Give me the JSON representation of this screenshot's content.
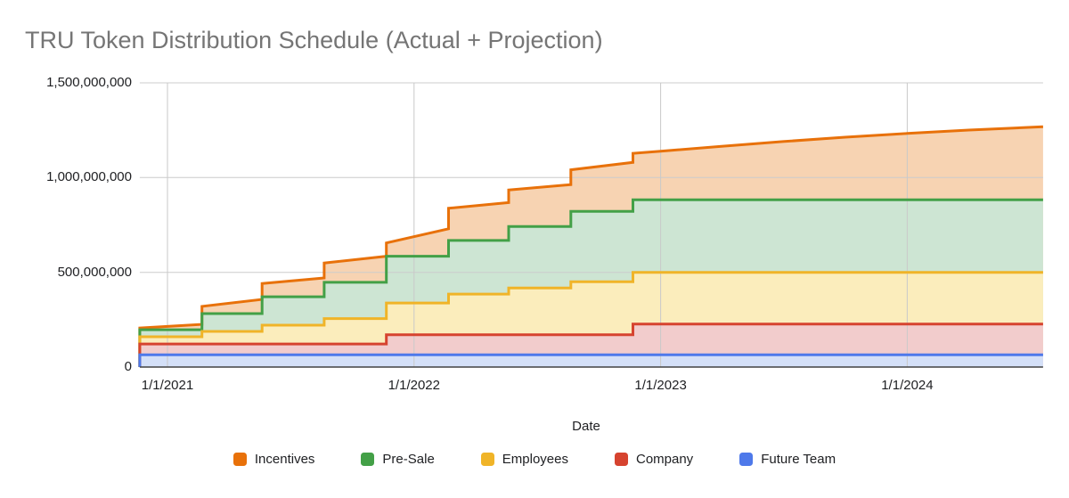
{
  "chart_data": {
    "type": "stepped-area",
    "title": "TRU Token Distribution Schedule (Actual + Projection)",
    "xlabel": "Date",
    "values_unit": "millions of tokens",
    "ylim_millions": [
      0,
      1500
    ],
    "grid": true,
    "legend_position": "bottom",
    "y_axis": {
      "ticks": [
        {
          "value_millions": 0,
          "label": "0"
        },
        {
          "value_millions": 500,
          "label": "500,000,000"
        },
        {
          "value_millions": 1000,
          "label": "1,000,000,000"
        },
        {
          "value_millions": 1500,
          "label": "1,500,000,000"
        }
      ]
    },
    "x_axis": {
      "ticks": [
        {
          "date": "2021-01-01",
          "label": "1/1/2021"
        },
        {
          "date": "2022-01-01",
          "label": "1/1/2022"
        },
        {
          "date": "2023-01-01",
          "label": "1/1/2023"
        },
        {
          "date": "2024-01-01",
          "label": "1/1/2024"
        }
      ],
      "range": [
        "2020-11-21",
        "2024-07-20"
      ]
    },
    "series": [
      {
        "name": "Incentives",
        "color": "#E8710A",
        "fill": "#F7D3B2",
        "step": false,
        "points": [
          [
            "2020-11-21",
            0
          ],
          [
            "2020-11-21",
            206
          ],
          [
            "2021-02-21",
            225
          ],
          [
            "2021-02-21",
            320
          ],
          [
            "2021-05-21",
            357
          ],
          [
            "2021-05-21",
            441
          ],
          [
            "2021-08-21",
            470
          ],
          [
            "2021-08-21",
            549
          ],
          [
            "2021-11-21",
            585
          ],
          [
            "2021-11-21",
            655
          ],
          [
            "2022-02-21",
            730
          ],
          [
            "2022-02-21",
            838
          ],
          [
            "2022-05-21",
            868
          ],
          [
            "2022-05-21",
            935
          ],
          [
            "2022-08-21",
            963
          ],
          [
            "2022-08-21",
            1041
          ],
          [
            "2022-11-21",
            1080
          ],
          [
            "2022-11-21",
            1128
          ],
          [
            "2023-01-01",
            1139
          ],
          [
            "2023-04-01",
            1165
          ],
          [
            "2023-07-01",
            1190
          ],
          [
            "2023-10-01",
            1213
          ],
          [
            "2024-01-01",
            1233
          ],
          [
            "2024-04-01",
            1251
          ],
          [
            "2024-07-20",
            1268
          ]
        ]
      },
      {
        "name": "Pre-Sale",
        "color": "#43A047",
        "fill": "#CDE5D3",
        "step": true,
        "points": [
          [
            "2020-11-21",
            197
          ],
          [
            "2021-02-21",
            282
          ],
          [
            "2021-05-21",
            371
          ],
          [
            "2021-08-21",
            447
          ],
          [
            "2021-11-21",
            585
          ],
          [
            "2022-02-21",
            668
          ],
          [
            "2022-05-21",
            742
          ],
          [
            "2022-08-21",
            822
          ],
          [
            "2022-11-21",
            883
          ],
          [
            "2024-07-20",
            883
          ]
        ]
      },
      {
        "name": "Employees",
        "color": "#F0B428",
        "fill": "#FBEDBC",
        "step": true,
        "points": [
          [
            "2020-11-21",
            160
          ],
          [
            "2021-02-21",
            188
          ],
          [
            "2021-05-21",
            221
          ],
          [
            "2021-08-21",
            256
          ],
          [
            "2021-11-21",
            338
          ],
          [
            "2022-02-21",
            385
          ],
          [
            "2022-05-21",
            417
          ],
          [
            "2022-08-21",
            450
          ],
          [
            "2022-11-21",
            500
          ],
          [
            "2024-07-20",
            500
          ]
        ]
      },
      {
        "name": "Company",
        "color": "#D6432F",
        "fill": "#F2CCCC",
        "step": true,
        "points": [
          [
            "2020-11-21",
            122
          ],
          [
            "2021-11-21",
            170
          ],
          [
            "2022-11-21",
            227
          ],
          [
            "2024-07-20",
            227
          ]
        ]
      },
      {
        "name": "Future Team",
        "color": "#4E79EA",
        "fill": "#D4E0F8",
        "step": true,
        "points": [
          [
            "2020-11-21",
            65
          ],
          [
            "2024-07-20",
            65
          ]
        ]
      }
    ]
  }
}
